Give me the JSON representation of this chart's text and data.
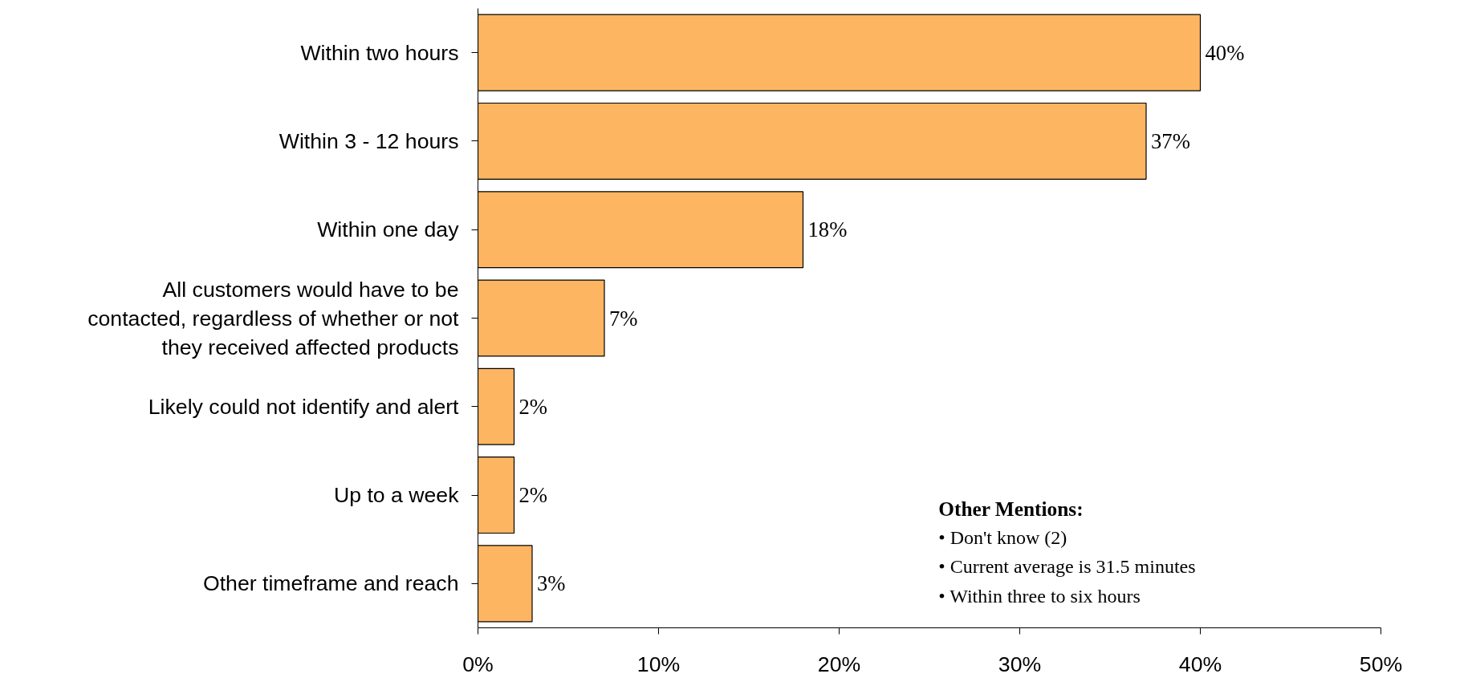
{
  "chart_data": {
    "type": "bar",
    "orientation": "horizontal",
    "categories": [
      "Within two hours",
      "Within 3 - 12 hours",
      "Within one day",
      "All customers would have to be contacted, regardless of whether or not they received affected products",
      "Likely could not identify and alert",
      "Up to a week",
      "Other timeframe and reach"
    ],
    "values": [
      40,
      37,
      18,
      7,
      2,
      2,
      3
    ],
    "value_labels": [
      "40%",
      "37%",
      "18%",
      "7%",
      "2%",
      "2%",
      "3%"
    ],
    "color": "#fdb561",
    "xlim": [
      0,
      50
    ],
    "xticks": [
      {
        "value": 0,
        "label": "0%"
      },
      {
        "value": 10,
        "label": "10%"
      },
      {
        "value": 20,
        "label": "20%"
      },
      {
        "value": 30,
        "label": "30%"
      },
      {
        "value": 40,
        "label": "40%"
      },
      {
        "value": 50,
        "label": "50%"
      }
    ],
    "grid": false,
    "annotations": [
      "Other Mentions:",
      "•    Don't know (2)",
      "•    Current average is 31.5 minutes",
      "•    Within three to six hours"
    ]
  }
}
